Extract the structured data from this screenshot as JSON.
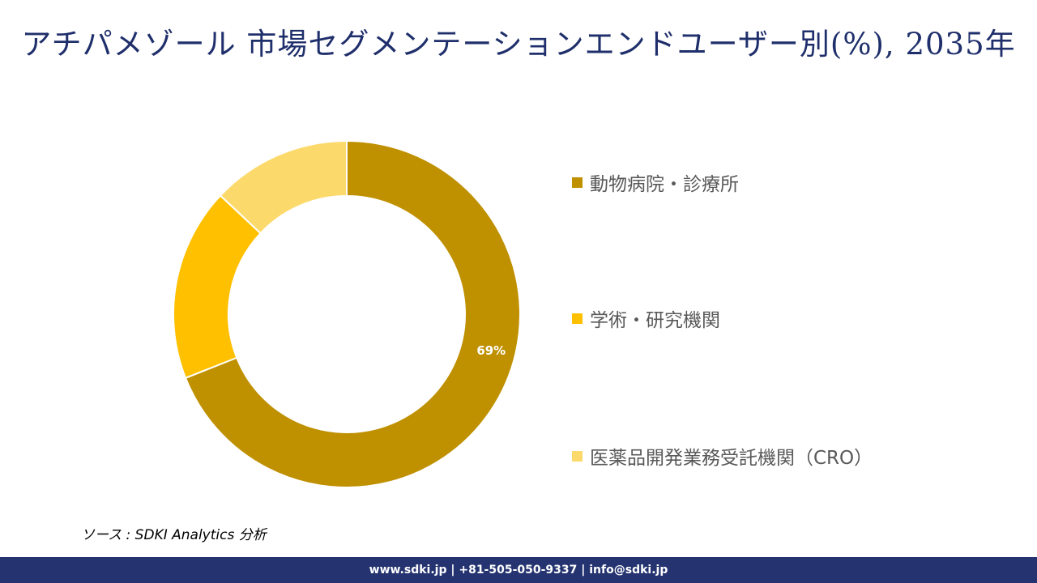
{
  "title": "アチパメゾール 市場セグメンテーションエンドユーザー別(%), 2035年",
  "chart_data": {
    "type": "pie",
    "donut": true,
    "categories": [
      "動物病院・診療所",
      "学術・研究機関",
      "医薬品開発業務受託機関（CRO）"
    ],
    "values": [
      69,
      18,
      13
    ],
    "colors": [
      "#bf9000",
      "#ffc000",
      "#fcd96b"
    ],
    "data_labels": [
      "69%",
      "",
      ""
    ],
    "legend_position": "right"
  },
  "source": "ソース : SDKI Analytics 分析",
  "footer": "www.sdki.jp | +81-505-050-9337 | info@sdki.jp"
}
